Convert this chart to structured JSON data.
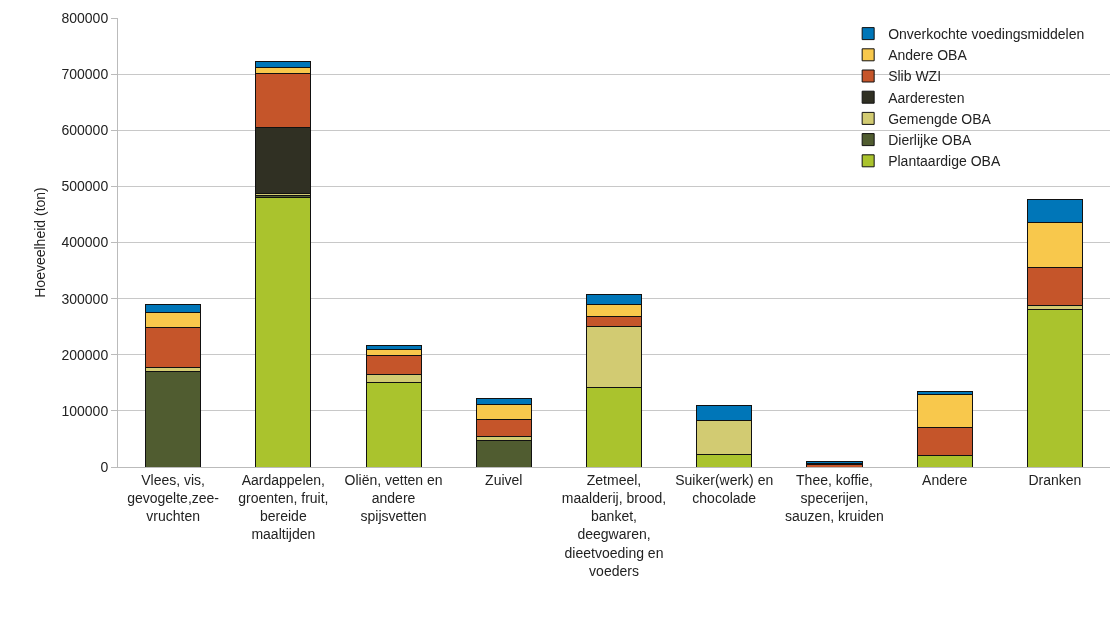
{
  "chart_data": {
    "type": "bar",
    "stacked": true,
    "ylabel": "Hoeveelheid (ton)",
    "categories": [
      "Vlees, vis, gevogelte,zee-vruchten",
      "Aardappelen, groenten, fruit, bereide maaltijden",
      "Oliën, vetten en andere spijsvetten",
      "Zuivel",
      "Zetmeel, maalderij, brood, banket, deegwaren, dieetvoeding en voeders",
      "Suiker(werk) en chocolade",
      "Thee, koffie, specerijen, sauzen, kruiden",
      "Andere",
      "Dranken"
    ],
    "series": [
      {
        "name": "Plantaardige OBA",
        "color": "#aac32d",
        "values": [
          0,
          481000,
          150000,
          0,
          142000,
          22000,
          null,
          20000,
          280000
        ]
      },
      {
        "name": "Dierlijke OBA",
        "color": "#505c30",
        "values": [
          170000,
          3000,
          0,
          48000,
          0,
          0,
          0,
          0,
          0
        ]
      },
      {
        "name": "Gemengde OBA",
        "color": "#d2cb72",
        "values": [
          7000,
          4000,
          15000,
          6000,
          109000,
          60000,
          0,
          0,
          8000
        ]
      },
      {
        "name": "Aarderesten",
        "color": "#303023",
        "values": [
          0,
          117000,
          0,
          0,
          0,
          0,
          0,
          0,
          0
        ]
      },
      {
        "name": "Slib WZI",
        "color": "#c5552a",
        "values": [
          71000,
          97000,
          34000,
          31000,
          17000,
          0,
          4000,
          50000,
          68000
        ]
      },
      {
        "name": "Andere OBA",
        "color": "#f8c84c",
        "values": [
          27000,
          10000,
          10000,
          27000,
          22000,
          0,
          2000,
          60000,
          80000
        ]
      },
      {
        "name": "Onverkochte voedingsmiddelen",
        "color": "#0076b8",
        "values": [
          15000,
          11000,
          7000,
          10000,
          18000,
          28000,
          3000,
          5000,
          41000
        ]
      }
    ],
    "ylim": [
      0,
      800000
    ],
    "yticks": [
      0,
      100000,
      200000,
      300000,
      400000,
      500000,
      600000,
      700000,
      800000
    ],
    "grid": "y",
    "legend": "top right"
  }
}
